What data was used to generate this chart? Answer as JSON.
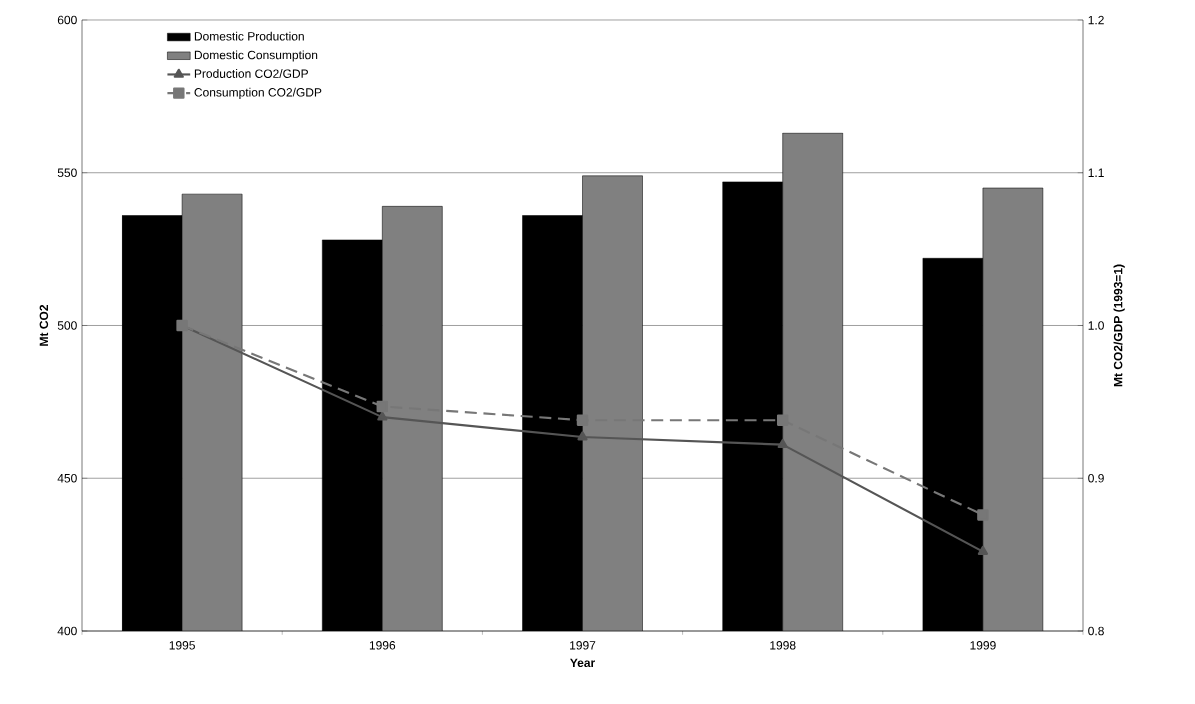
{
  "chart_data": {
    "type": "bar",
    "xlabel": "Year",
    "ylabel": "Mt CO2",
    "y2label": "Mt CO2/GDP (1993=1)",
    "categories": [
      "1995",
      "1996",
      "1997",
      "1998",
      "1999"
    ],
    "series": [
      {
        "name": "Domestic Production",
        "color": "#000000",
        "values": [
          536,
          528,
          536,
          547,
          522
        ]
      },
      {
        "name": "Domestic Consumption",
        "color": "#808080",
        "values": [
          543,
          539,
          549,
          563,
          545
        ]
      },
      {
        "name": "Production CO2/GDP",
        "type": "line",
        "axis": "y2",
        "color": "#555555",
        "marker": "triangle",
        "line_style": "solid",
        "values": [
          1.0,
          0.94,
          0.927,
          0.922,
          0.852
        ]
      },
      {
        "name": "Consumption CO2/GDP",
        "type": "line",
        "axis": "y2",
        "color": "#777777",
        "marker": "square",
        "line_style": "dashed",
        "values": [
          1.0,
          0.947,
          0.938,
          0.938,
          0.876
        ]
      }
    ],
    "ylim": [
      400,
      600
    ],
    "yticks": [
      400,
      450,
      500,
      550,
      600
    ],
    "y2lim": [
      0.8,
      1.2
    ],
    "y2ticks": [
      {
        "value": 0.8,
        "label": "0.8"
      },
      {
        "value": 0.9,
        "label": "0.9"
      },
      {
        "value": 1,
        "label": "1.0"
      },
      {
        "value": 1.1,
        "label": "1.1"
      },
      {
        "value": 1.2,
        "label": "1.2"
      }
    ],
    "grid": "y",
    "legend": "top left"
  }
}
